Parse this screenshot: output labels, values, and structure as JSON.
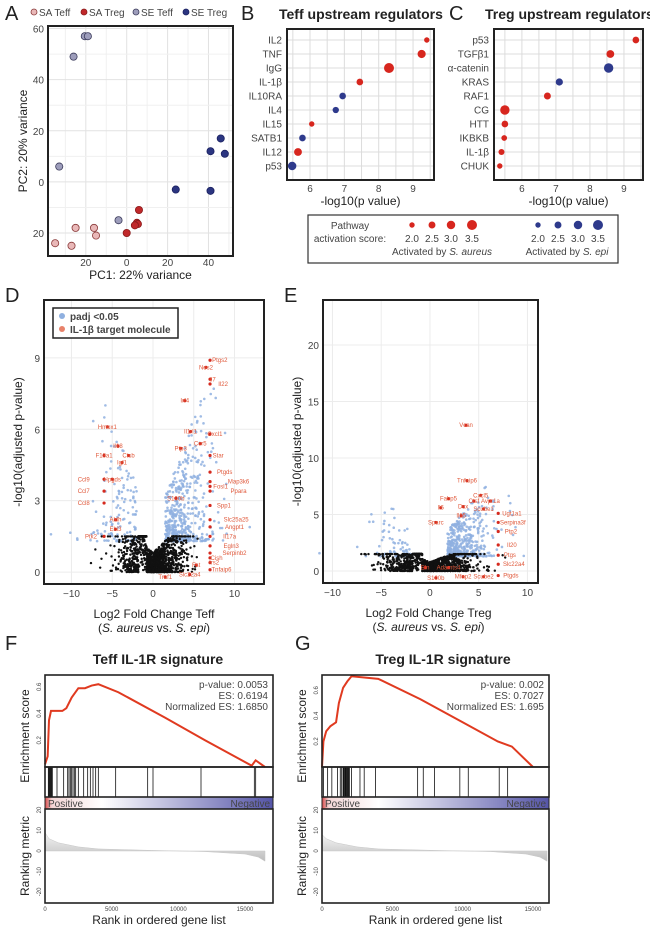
{
  "panel_labels": [
    "A",
    "B",
    "C",
    "D",
    "E",
    "F",
    "G"
  ],
  "bc_legend": {
    "title_line1": "Pathway",
    "title_line2": "activation score:",
    "scores": [
      "2.0",
      "2.5",
      "3.0",
      "3.5"
    ],
    "score_values": [
      2.0,
      2.5,
      3.0,
      3.5
    ],
    "red_caption": [
      "Activated by ",
      "S. aureus"
    ],
    "blue_caption": [
      "Activated by ",
      "S. epi"
    ],
    "red": "#d7261e",
    "blue": "#2e3a8c"
  },
  "chart_data": [
    {
      "panel": "A",
      "type": "scatter",
      "xlabel": "PC1: 22%  variance",
      "ylabel": "PC2: 20%  variance",
      "xlim": [
        -38.5,
        52
      ],
      "ylim": [
        -29,
        61
      ],
      "xticks": [
        {
          "v": -20,
          "label": "20"
        },
        {
          "v": 0,
          "label": "0"
        },
        {
          "v": 20,
          "label": "20"
        },
        {
          "v": 40,
          "label": "40"
        }
      ],
      "yticks": [
        {
          "v": 60,
          "label": "60"
        },
        {
          "v": 40,
          "label": "40"
        },
        {
          "v": 20,
          "label": "20"
        },
        {
          "v": 0,
          "label": "0"
        },
        {
          "v": -20,
          "label": "20"
        }
      ],
      "grid": true,
      "series": [
        {
          "name": "SA Teff",
          "fill": "#e9b8b8",
          "stroke": "#8a3a3a",
          "points": [
            [
              -35,
              -24
            ],
            [
              -27,
              -25
            ],
            [
              -25,
              -18
            ],
            [
              -16,
              -18
            ],
            [
              -15,
              -21
            ]
          ]
        },
        {
          "name": "SA Treg",
          "fill": "#c0282a",
          "stroke": "#8a1a1a",
          "points": [
            [
              6,
              -11
            ],
            [
              5,
              -16
            ],
            [
              5.5,
              -16.5
            ],
            [
              4,
              -17
            ],
            [
              0,
              -20
            ]
          ]
        },
        {
          "name": "SE Teff",
          "fill": "#9d9dbb",
          "stroke": "#3a3a5a",
          "points": [
            [
              -20.5,
              57
            ],
            [
              -19,
              57
            ],
            [
              -26,
              49
            ],
            [
              -33,
              6
            ],
            [
              -4,
              -15
            ]
          ]
        },
        {
          "name": "SE Treg",
          "fill": "#2b3580",
          "stroke": "#1a2060",
          "points": [
            [
              46,
              17
            ],
            [
              41,
              12
            ],
            [
              48,
              11
            ],
            [
              24,
              -3
            ],
            [
              41,
              -3.5
            ]
          ]
        }
      ]
    },
    {
      "panel": "B",
      "type": "scatter",
      "title": "Teff upstream regulators",
      "xlabel": "-log10(p value)",
      "xlim": [
        5.33,
        9.61
      ],
      "xticks": [
        6,
        7,
        8,
        9
      ],
      "rows": [
        {
          "label": "IL2",
          "x": 9.4,
          "score": 2.0,
          "group": "aureus"
        },
        {
          "label": "TNF",
          "x": 9.25,
          "score": 2.9,
          "group": "aureus"
        },
        {
          "label": "IgG",
          "x": 8.3,
          "score": 3.5,
          "group": "aureus"
        },
        {
          "label": "IL-1β",
          "x": 7.45,
          "score": 2.4,
          "group": "aureus"
        },
        {
          "label": "IL10RA",
          "x": 6.95,
          "score": 2.4,
          "group": "epi"
        },
        {
          "label": "IL4",
          "x": 6.75,
          "score": 2.3,
          "group": "epi"
        },
        {
          "label": "IL15",
          "x": 6.05,
          "score": 2.0,
          "group": "aureus"
        },
        {
          "label": "SATB1",
          "x": 5.78,
          "score": 2.4,
          "group": "epi"
        },
        {
          "label": "IL12",
          "x": 5.65,
          "score": 2.8,
          "group": "aureus"
        },
        {
          "label": "p53",
          "x": 5.48,
          "score": 3.0,
          "group": "epi"
        }
      ]
    },
    {
      "panel": "C",
      "type": "scatter",
      "title": "Treg upstream regulators",
      "xlabel": "-log10(p value)",
      "xlim": [
        5.18,
        9.56
      ],
      "xticks": [
        6,
        7,
        8,
        9
      ],
      "rows": [
        {
          "label": "p53",
          "x": 9.35,
          "score": 2.4,
          "group": "aureus"
        },
        {
          "label": "TGFβ1",
          "x": 8.6,
          "score": 2.8,
          "group": "aureus"
        },
        {
          "label": "α-catenin",
          "x": 8.55,
          "score": 3.3,
          "group": "epi"
        },
        {
          "label": "KRAS",
          "x": 7.1,
          "score": 2.6,
          "group": "epi"
        },
        {
          "label": "RAF1",
          "x": 6.75,
          "score": 2.5,
          "group": "aureus"
        },
        {
          "label": "CG",
          "x": 5.5,
          "score": 3.3,
          "group": "aureus"
        },
        {
          "label": "HTT",
          "x": 5.5,
          "score": 2.4,
          "group": "aureus"
        },
        {
          "label": "IKBKB",
          "x": 5.48,
          "score": 2.1,
          "group": "aureus"
        },
        {
          "label": "IL-1β",
          "x": 5.4,
          "score": 2.2,
          "group": "aureus"
        },
        {
          "label": "CHUK",
          "x": 5.35,
          "score": 2.0,
          "group": "aureus"
        }
      ]
    },
    {
      "panel": "D",
      "type": "scatter",
      "xlabel": "Log2 Fold Change Teff",
      "xlabel2": [
        "(",
        "S. aureus",
        " vs. ",
        "S. epi",
        ")"
      ],
      "ylabel": "-log10(adjusted p-value)",
      "xlim": [
        -13.37,
        13.62
      ],
      "ylim": [
        -0.5,
        11.43
      ],
      "xticks": [
        {
          "v": -10,
          "label": "−10"
        },
        {
          "v": -5,
          "label": "−5"
        },
        {
          "v": 0,
          "label": "0"
        },
        {
          "v": 5,
          "label": "5"
        },
        {
          "v": 10,
          "label": "10"
        }
      ],
      "yticks": [
        {
          "v": 0,
          "label": "0"
        },
        {
          "v": 3,
          "label": "3"
        },
        {
          "v": 6,
          "label": "6"
        },
        {
          "v": 9,
          "label": "9"
        }
      ],
      "legend": [
        {
          "label": "padj <0.05",
          "color": "#8fb0e0"
        },
        {
          "label": "IL-1β target molecule",
          "color": "#e8826a"
        }
      ],
      "genes": [
        {
          "label": "Ptgs2",
          "x": 8.2,
          "y": 8.9
        },
        {
          "label": "Nos2",
          "x": 6.5,
          "y": 8.6
        },
        {
          "label": "Il7",
          "x": 7.3,
          "y": 8.1
        },
        {
          "label": "Il22",
          "x": 8.6,
          "y": 7.9
        },
        {
          "label": "Irf4",
          "x": 3.9,
          "y": 7.2
        },
        {
          "label": "Il1rl1",
          "x": 4.6,
          "y": 5.9
        },
        {
          "label": "Cxcl1",
          "x": 7.6,
          "y": 5.8
        },
        {
          "label": "Ptp3",
          "x": 3.4,
          "y": 5.2
        },
        {
          "label": "Ccr5",
          "x": 5.8,
          "y": 5.4
        },
        {
          "label": "Star",
          "x": 8.0,
          "y": 4.9
        },
        {
          "label": "Ptgds",
          "x": 8.8,
          "y": 4.2
        },
        {
          "label": "Map3k6",
          "x": 10.5,
          "y": 3.8
        },
        {
          "label": "Ppara",
          "x": 10.5,
          "y": 3.4
        },
        {
          "label": "Fosl1",
          "x": 8.3,
          "y": 3.6
        },
        {
          "label": "S100b",
          "x": 2.8,
          "y": 3.1
        },
        {
          "label": "Spp1",
          "x": 8.7,
          "y": 2.8
        },
        {
          "label": "Slc25a25",
          "x": 10.2,
          "y": 2.2
        },
        {
          "label": "Angpt1",
          "x": 10.0,
          "y": 1.9
        },
        {
          "label": "Il17a",
          "x": 9.4,
          "y": 1.5
        },
        {
          "label": "Egln3",
          "x": 9.6,
          "y": 1.1
        },
        {
          "label": "Serpinb2",
          "x": 10.0,
          "y": 0.8
        },
        {
          "label": "Cish",
          "x": 7.8,
          "y": 0.6
        },
        {
          "label": "Irs2",
          "x": 7.5,
          "y": 0.4
        },
        {
          "label": "Tnfaip6",
          "x": 8.4,
          "y": 0.1
        },
        {
          "label": "Fst",
          "x": 5.3,
          "y": 0.3
        },
        {
          "label": "Slc22a4",
          "x": 4.5,
          "y": -0.1
        },
        {
          "label": "Traf1",
          "x": 1.5,
          "y": -0.2
        },
        {
          "label": "Hmox1",
          "x": -5.6,
          "y": 6.1
        },
        {
          "label": "Il18",
          "x": -4.3,
          "y": 5.3
        },
        {
          "label": "F13a1",
          "x": -6.0,
          "y": 4.9
        },
        {
          "label": "Ctsb",
          "x": -3.0,
          "y": 4.9
        },
        {
          "label": "Igf1",
          "x": -3.8,
          "y": 4.6
        },
        {
          "label": "Ccl9",
          "x": -8.5,
          "y": 3.9
        },
        {
          "label": "Hpgds",
          "x": -5.0,
          "y": 3.9
        },
        {
          "label": "Ccl7",
          "x": -8.5,
          "y": 3.4
        },
        {
          "label": "Ccl8",
          "x": -8.5,
          "y": 2.9
        },
        {
          "label": "Aldh",
          "x": -4.6,
          "y": 2.2
        },
        {
          "label": "Ebi3",
          "x": -4.6,
          "y": 1.8
        },
        {
          "label": "Ptk2",
          "x": -7.6,
          "y": 1.5
        }
      ]
    },
    {
      "panel": "E",
      "type": "scatter",
      "xlabel": "Log2 Fold Change Treg",
      "xlabel2": [
        "(",
        "S. aureus",
        " vs. ",
        "S. epi",
        ")"
      ],
      "ylabel": "-log10(adjusted p-value)",
      "xlim": [
        -10.97,
        11.08
      ],
      "ylim": [
        -1.06,
        23.98
      ],
      "xticks": [
        {
          "v": -10,
          "label": "−10"
        },
        {
          "v": -5,
          "label": "−5"
        },
        {
          "v": 0,
          "label": "0"
        },
        {
          "v": 5,
          "label": "5"
        },
        {
          "v": 10,
          "label": "10"
        }
      ],
      "yticks": [
        {
          "v": 0,
          "label": "0"
        },
        {
          "v": 5,
          "label": "5"
        },
        {
          "v": 10,
          "label": "10"
        },
        {
          "v": 15,
          "label": "15"
        },
        {
          "v": 20,
          "label": "20"
        }
      ],
      "genes": [
        {
          "label": "Vcan",
          "x": 3.7,
          "y": 12.9
        },
        {
          "label": "Tnfaip6",
          "x": 3.8,
          "y": 8.0
        },
        {
          "label": "Cxcl5",
          "x": 5.2,
          "y": 6.7
        },
        {
          "label": "Ctsf",
          "x": 4.5,
          "y": 6.2
        },
        {
          "label": "Avpr1a",
          "x": 6.2,
          "y": 6.2
        },
        {
          "label": "Fabp5",
          "x": 1.9,
          "y": 6.4
        },
        {
          "label": "Il6",
          "x": 1.1,
          "y": 5.6
        },
        {
          "label": "Dcx",
          "x": 3.4,
          "y": 5.7
        },
        {
          "label": "Il15",
          "x": 3.2,
          "y": 4.9
        },
        {
          "label": "Scube1",
          "x": 5.5,
          "y": 5.5
        },
        {
          "label": "Ugt1a1",
          "x": 8.4,
          "y": 5.1
        },
        {
          "label": "Serpina3f",
          "x": 8.5,
          "y": 4.3
        },
        {
          "label": "Sparc",
          "x": 0.6,
          "y": 4.3
        },
        {
          "label": "Ptp2",
          "x": 8.3,
          "y": 3.5
        },
        {
          "label": "Il20",
          "x": 8.4,
          "y": 2.3
        },
        {
          "label": "Ptgs",
          "x": 8.2,
          "y": 1.4
        },
        {
          "label": "Slc22a4",
          "x": 8.6,
          "y": 0.6
        },
        {
          "label": "Ptgds",
          "x": 8.3,
          "y": -0.4
        },
        {
          "label": "Mfap2",
          "x": 3.4,
          "y": -0.5
        },
        {
          "label": "Scube2",
          "x": 5.5,
          "y": -0.5
        },
        {
          "label": "S100b",
          "x": 0.6,
          "y": -0.6
        },
        {
          "label": "Adamts4",
          "x": 1.9,
          "y": 0.3
        },
        {
          "label": "Eln",
          "x": -0.5,
          "y": 0.3
        }
      ]
    },
    {
      "panel": "F",
      "type": "line",
      "title": "Teff IL-1R signature",
      "stats": [
        "p-value: 0.0053",
        "ES: 0.6194",
        "Normalized ES: 1.6850"
      ],
      "ylabel_es": "Enrichment score",
      "ylabel_rank": "Ranking metric",
      "xlabel": "Rank in ordered gene list",
      "xlim": [
        0,
        17100
      ],
      "es_ylim": [
        0,
        0.689
      ],
      "rank_ylim": [
        -25.4,
        20.5
      ],
      "xticks": [
        0,
        5000,
        10000,
        15000
      ],
      "es_yticks": [
        "0.2",
        "0.4",
        "0.6"
      ],
      "rank_yticks": [
        "20",
        "10",
        "0",
        "-10",
        "-20"
      ],
      "bar_labels": [
        "Positive",
        "Negative"
      ],
      "es_curve": [
        [
          0,
          0.02
        ],
        [
          200,
          0.08
        ],
        [
          300,
          0.35
        ],
        [
          450,
          0.42
        ],
        [
          1300,
          0.42
        ],
        [
          1600,
          0.44
        ],
        [
          2000,
          0.52
        ],
        [
          2500,
          0.59
        ],
        [
          3000,
          0.59
        ],
        [
          3500,
          0.61
        ],
        [
          4000,
          0.62
        ],
        [
          5500,
          0.56
        ],
        [
          9000,
          0.37
        ],
        [
          12000,
          0.2
        ],
        [
          15500,
          0.01
        ],
        [
          15800,
          0.05
        ],
        [
          16500,
          0.0
        ]
      ],
      "hits": [
        250,
        300,
        350,
        400,
        450,
        500,
        550,
        900,
        1400,
        1700,
        1800,
        1900,
        2000,
        2100,
        2200,
        2300,
        2500,
        2900,
        3200,
        3400,
        3600,
        3800,
        4000,
        5300,
        7700,
        8100,
        11700,
        15700,
        15800
      ],
      "rank_metric": [
        [
          0,
          9
        ],
        [
          300,
          6
        ],
        [
          1000,
          4
        ],
        [
          2500,
          2
        ],
        [
          4000,
          1
        ],
        [
          8000,
          0.3
        ],
        [
          12000,
          -0.3
        ],
        [
          15000,
          -1.5
        ],
        [
          16000,
          -3
        ],
        [
          16500,
          -5
        ],
        [
          16500,
          0
        ]
      ]
    },
    {
      "panel": "G",
      "type": "line",
      "title": "Treg IL-1R signature",
      "stats": [
        "p-value: 0.002",
        "ES: 0.7027",
        "Normalized ES: 1.695"
      ],
      "ylabel_es": "Enrichment score",
      "ylabel_rank": "Ranking metric",
      "xlabel": "Rank in ordered gene list",
      "xlim": [
        0,
        16140
      ],
      "es_ylim": [
        0,
        0.72
      ],
      "rank_ylim": [
        -25.4,
        20.5
      ],
      "xticks": [
        0,
        5000,
        10000,
        15000
      ],
      "es_yticks": [
        "0.2",
        "0.4",
        "0.6"
      ],
      "rank_yticks": [
        "20",
        "10",
        "0",
        "-10",
        "-20"
      ],
      "bar_labels": [
        "Positive",
        "Negative"
      ],
      "es_curve": [
        [
          0,
          0
        ],
        [
          100,
          0.2
        ],
        [
          300,
          0.28
        ],
        [
          600,
          0.32
        ],
        [
          1000,
          0.35
        ],
        [
          1200,
          0.5
        ],
        [
          1500,
          0.62
        ],
        [
          1800,
          0.67
        ],
        [
          2100,
          0.71
        ],
        [
          4000,
          0.69
        ],
        [
          7000,
          0.53
        ],
        [
          10000,
          0.35
        ],
        [
          12500,
          0.2
        ],
        [
          13500,
          0.16
        ],
        [
          15000,
          0.0
        ]
      ],
      "hits": [
        100,
        400,
        700,
        1100,
        1300,
        1400,
        1500,
        1550,
        1600,
        1650,
        1700,
        1750,
        1800,
        1850,
        1900,
        1950,
        2100,
        2700,
        3000,
        3800,
        6800,
        7200,
        8000,
        9800,
        10400,
        12600,
        13200
      ],
      "rank_metric": [
        [
          0,
          8
        ],
        [
          300,
          6
        ],
        [
          1000,
          4
        ],
        [
          2500,
          2
        ],
        [
          4000,
          1
        ],
        [
          8000,
          0.3
        ],
        [
          12000,
          -0.3
        ],
        [
          14500,
          -1.5
        ],
        [
          15500,
          -3
        ],
        [
          16000,
          -5
        ],
        [
          16000,
          0
        ]
      ]
    }
  ]
}
